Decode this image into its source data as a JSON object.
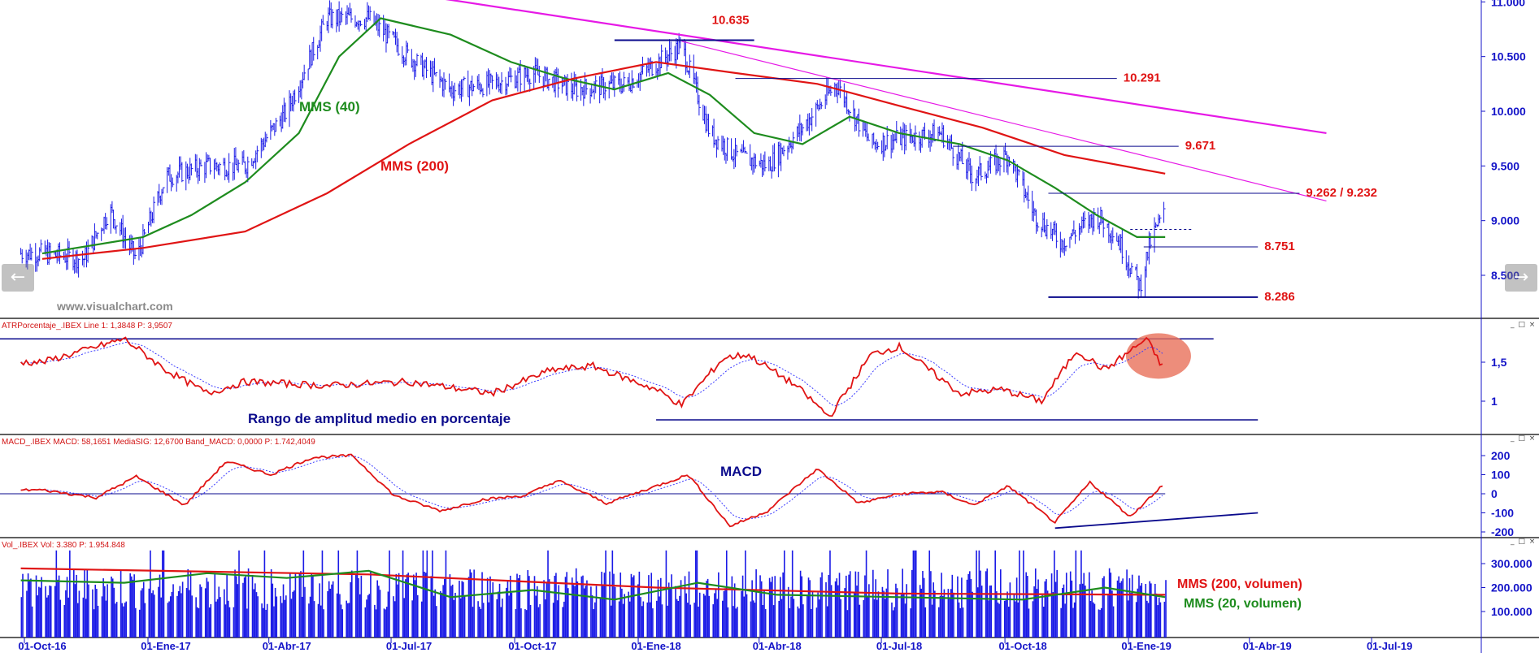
{
  "colors": {
    "background": "#ffffff",
    "axis_text": "#1414c8",
    "price_bars": "#1a1ae6",
    "mms40": "#1e8c1e",
    "mms200": "#e01414",
    "trendline": "#e619e6",
    "hline": "#0a0a8c",
    "annotation_red": "#e01414",
    "annotation_green": "#1e8c1e",
    "annotation_navy": "#0a0a8c",
    "panel_header": "#d21414",
    "divider": "#000000",
    "highlight_circle": "#e8705a"
  },
  "navigation": {
    "prev_icon": "arrow-left-icon",
    "next_icon": "arrow-right-icon",
    "prev_glyph": "←",
    "next_glyph": "→"
  },
  "watermark": "www.visualchart.com",
  "window_controls": "_ □ ×",
  "x_axis": {
    "ticks": [
      "01-Oct-16",
      "01-Ene-17",
      "01-Abr-17",
      "01-Jul-17",
      "01-Oct-17",
      "01-Ene-18",
      "01-Abr-18",
      "01-Jul-18",
      "01-Oct-18",
      "01-Ene-19",
      "01-Abr-19",
      "01-Jul-19"
    ]
  },
  "chart_data": [
    {
      "panel": "price",
      "type": "line",
      "y_axis_ticks": [
        "11.000",
        "10.500",
        "10.000",
        "9.500",
        "9.000",
        "8.500"
      ],
      "ylim": [
        8200,
        11000
      ],
      "price_bars": [
        {
          "date": "2016-10-01",
          "close": 8700
        },
        {
          "date": "2016-11-01",
          "close": 8650
        },
        {
          "date": "2016-11-20",
          "close": 9100
        },
        {
          "date": "2016-12-10",
          "close": 8650
        },
        {
          "date": "2017-01-01",
          "close": 9400
        },
        {
          "date": "2017-02-01",
          "close": 9500
        },
        {
          "date": "2017-03-01",
          "close": 9500
        },
        {
          "date": "2017-04-01",
          "close": 10000
        },
        {
          "date": "2017-05-01",
          "close": 10850
        },
        {
          "date": "2017-06-01",
          "close": 10850
        },
        {
          "date": "2017-07-01",
          "close": 10500
        },
        {
          "date": "2017-08-01",
          "close": 10200
        },
        {
          "date": "2017-09-01",
          "close": 10250
        },
        {
          "date": "2017-10-01",
          "close": 10350
        },
        {
          "date": "2017-11-01",
          "close": 10200
        },
        {
          "date": "2017-12-10",
          "close": 10250
        },
        {
          "date": "2018-01-20",
          "close": 10600
        },
        {
          "date": "2018-02-10",
          "close": 9800
        },
        {
          "date": "2018-03-01",
          "close": 9600
        },
        {
          "date": "2018-03-25",
          "close": 9500
        },
        {
          "date": "2018-04-20",
          "close": 9850
        },
        {
          "date": "2018-05-15",
          "close": 10250
        },
        {
          "date": "2018-06-10",
          "close": 9700
        },
        {
          "date": "2018-07-01",
          "close": 9750
        },
        {
          "date": "2018-08-01",
          "close": 9800
        },
        {
          "date": "2018-08-25",
          "close": 9400
        },
        {
          "date": "2018-09-20",
          "close": 9600
        },
        {
          "date": "2018-10-10",
          "close": 9050
        },
        {
          "date": "2018-10-30",
          "close": 8800
        },
        {
          "date": "2018-11-25",
          "close": 9050
        },
        {
          "date": "2018-12-10",
          "close": 8850
        },
        {
          "date": "2018-12-27",
          "close": 8400
        },
        {
          "date": "2019-01-05",
          "close": 8850
        },
        {
          "date": "2019-01-14",
          "close": 9050
        }
      ],
      "series": [
        {
          "name": "MMS (40)",
          "points": [
            {
              "date": "2016-10-01",
              "y": 8700
            },
            {
              "date": "2016-12-15",
              "y": 8850
            },
            {
              "date": "2017-01-20",
              "y": 9050
            },
            {
              "date": "2017-03-01",
              "y": 9350
            },
            {
              "date": "2017-04-10",
              "y": 9800
            },
            {
              "date": "2017-05-10",
              "y": 10500
            },
            {
              "date": "2017-06-10",
              "y": 10850
            },
            {
              "date": "2017-08-01",
              "y": 10700
            },
            {
              "date": "2017-09-15",
              "y": 10450
            },
            {
              "date": "2017-10-25",
              "y": 10300
            },
            {
              "date": "2017-12-01",
              "y": 10200
            },
            {
              "date": "2018-01-10",
              "y": 10350
            },
            {
              "date": "2018-02-10",
              "y": 10150
            },
            {
              "date": "2018-03-15",
              "y": 9800
            },
            {
              "date": "2018-04-20",
              "y": 9700
            },
            {
              "date": "2018-05-25",
              "y": 9950
            },
            {
              "date": "2018-07-01",
              "y": 9800
            },
            {
              "date": "2018-08-15",
              "y": 9700
            },
            {
              "date": "2018-09-20",
              "y": 9550
            },
            {
              "date": "2018-10-25",
              "y": 9300
            },
            {
              "date": "2018-11-25",
              "y": 9050
            },
            {
              "date": "2018-12-25",
              "y": 8850
            },
            {
              "date": "2019-01-15",
              "y": 8850
            }
          ]
        },
        {
          "name": "MMS (200)",
          "points": [
            {
              "date": "2016-10-01",
              "y": 8650
            },
            {
              "date": "2016-12-15",
              "y": 8750
            },
            {
              "date": "2017-03-01",
              "y": 8900
            },
            {
              "date": "2017-05-01",
              "y": 9250
            },
            {
              "date": "2017-07-01",
              "y": 9700
            },
            {
              "date": "2017-09-01",
              "y": 10100
            },
            {
              "date": "2017-11-01",
              "y": 10300
            },
            {
              "date": "2018-01-01",
              "y": 10450
            },
            {
              "date": "2018-03-01",
              "y": 10350
            },
            {
              "date": "2018-05-01",
              "y": 10250
            },
            {
              "date": "2018-07-01",
              "y": 10050
            },
            {
              "date": "2018-09-01",
              "y": 9850
            },
            {
              "date": "2018-11-01",
              "y": 9600
            },
            {
              "date": "2019-01-15",
              "y": 9430
            }
          ]
        }
      ],
      "trendlines": [
        {
          "from": {
            "date": "2017-07-15",
            "y": 11050
          },
          "to": {
            "date": "2019-05-15",
            "y": 9800
          }
        },
        {
          "from": {
            "date": "2018-01-20",
            "y": 10640
          },
          "to": {
            "date": "2019-05-15",
            "y": 9180
          }
        }
      ],
      "levels": [
        {
          "label": "10.635",
          "y": 10650,
          "from": "2017-12-01",
          "to": "2018-03-15"
        },
        {
          "label": "10.291",
          "y": 10300,
          "from": "2018-03-01",
          "to": "2018-12-10"
        },
        {
          "label": "9.671",
          "y": 9680,
          "from": "2018-08-10",
          "to": "2019-01-25"
        },
        {
          "label": "9.262 / 9.232",
          "y": 9250,
          "from": "2018-10-20",
          "to": "2019-04-25"
        },
        {
          "label": "8.751",
          "y": 8760,
          "from": "2018-12-30",
          "to": "2019-03-25"
        },
        {
          "label": "8.286",
          "y": 8300,
          "from": "2018-10-20",
          "to": "2019-03-25"
        }
      ],
      "annotations": [
        "MMS (40)",
        "MMS (200)"
      ]
    },
    {
      "panel": "atr",
      "type": "line",
      "header": "ATRPorcentaje_.IBEX  Line 1: 1,3848  P: 3,9507",
      "label": "Rango de amplitud medio en porcentaje",
      "y_axis_ticks": [
        "1,5",
        "1"
      ],
      "ylim": [
        0.7,
        2.0
      ],
      "series": [
        {
          "name": "ATR %",
          "points": [
            {
              "date": "2016-10-01",
              "y": 1.5
            },
            {
              "date": "2016-11-01",
              "y": 1.65
            },
            {
              "date": "2016-12-01",
              "y": 1.8
            },
            {
              "date": "2017-01-01",
              "y": 1.4
            },
            {
              "date": "2017-02-01",
              "y": 1.1
            },
            {
              "date": "2017-03-01",
              "y": 1.25
            },
            {
              "date": "2017-05-01",
              "y": 1.2
            },
            {
              "date": "2017-07-01",
              "y": 1.25
            },
            {
              "date": "2017-09-01",
              "y": 1.1
            },
            {
              "date": "2017-10-15",
              "y": 1.4
            },
            {
              "date": "2017-11-15",
              "y": 1.45
            },
            {
              "date": "2018-01-01",
              "y": 1.15
            },
            {
              "date": "2018-01-20",
              "y": 0.95
            },
            {
              "date": "2018-02-20",
              "y": 1.55
            },
            {
              "date": "2018-03-10",
              "y": 1.6
            },
            {
              "date": "2018-04-15",
              "y": 1.2
            },
            {
              "date": "2018-05-10",
              "y": 0.8
            },
            {
              "date": "2018-06-10",
              "y": 1.6
            },
            {
              "date": "2018-07-01",
              "y": 1.7
            },
            {
              "date": "2018-08-15",
              "y": 1.1
            },
            {
              "date": "2018-09-15",
              "y": 1.15
            },
            {
              "date": "2018-10-15",
              "y": 1.0
            },
            {
              "date": "2018-11-10",
              "y": 1.65
            },
            {
              "date": "2018-12-01",
              "y": 1.4
            },
            {
              "date": "2019-01-01",
              "y": 1.8
            },
            {
              "date": "2019-01-15",
              "y": 1.38
            }
          ]
        }
      ]
    },
    {
      "panel": "macd",
      "type": "line",
      "header": "MACD_.IBEX  MACD: 58,1651  MediaSIG: 12,6700  Band_MACD: 0,0000  P: 1.742,4049",
      "label": "MACD",
      "y_axis_ticks": [
        "200",
        "100",
        "0",
        "-100",
        "-200"
      ],
      "ylim": [
        -220,
        220
      ],
      "series": [
        {
          "name": "MACD",
          "points": [
            {
              "date": "2016-10-01",
              "y": 20
            },
            {
              "date": "2016-11-10",
              "y": -20
            },
            {
              "date": "2016-12-10",
              "y": 90
            },
            {
              "date": "2017-01-15",
              "y": -60
            },
            {
              "date": "2017-02-15",
              "y": 170
            },
            {
              "date": "2017-03-20",
              "y": 100
            },
            {
              "date": "2017-04-20",
              "y": 190
            },
            {
              "date": "2017-05-20",
              "y": 200
            },
            {
              "date": "2017-06-20",
              "y": -10
            },
            {
              "date": "2017-07-25",
              "y": -90
            },
            {
              "date": "2017-08-25",
              "y": -30
            },
            {
              "date": "2017-09-25",
              "y": -10
            },
            {
              "date": "2017-10-20",
              "y": 70
            },
            {
              "date": "2017-11-25",
              "y": -50
            },
            {
              "date": "2018-01-01",
              "y": 40
            },
            {
              "date": "2018-01-25",
              "y": 100
            },
            {
              "date": "2018-02-25",
              "y": -170
            },
            {
              "date": "2018-03-25",
              "y": -90
            },
            {
              "date": "2018-05-01",
              "y": 130
            },
            {
              "date": "2018-06-01",
              "y": -50
            },
            {
              "date": "2018-07-01",
              "y": 0
            },
            {
              "date": "2018-08-01",
              "y": 10
            },
            {
              "date": "2018-08-25",
              "y": -60
            },
            {
              "date": "2018-09-20",
              "y": 40
            },
            {
              "date": "2018-10-25",
              "y": -150
            },
            {
              "date": "2018-11-20",
              "y": 60
            },
            {
              "date": "2018-12-20",
              "y": -120
            },
            {
              "date": "2019-01-15",
              "y": 60
            }
          ]
        }
      ]
    },
    {
      "panel": "volume",
      "type": "bar",
      "header": "Vol_.IBEX  Vol: 3.380  P: 1.954.848",
      "y_axis_ticks": [
        "300.000",
        "200.000",
        "100.000"
      ],
      "ylim": [
        0,
        360000
      ],
      "bar_range": {
        "from": "2016-09-15",
        "to": "2019-01-15",
        "avg": 210000
      },
      "series": [
        {
          "name": "MMS (200, volumen)",
          "points": [
            {
              "date": "2016-09-15",
              "y": 280000
            },
            {
              "date": "2017-06-01",
              "y": 255000
            },
            {
              "date": "2018-01-01",
              "y": 200000
            },
            {
              "date": "2018-07-01",
              "y": 175000
            },
            {
              "date": "2019-01-15",
              "y": 170000
            }
          ]
        },
        {
          "name": "MMS (20, volumen)",
          "points": [
            {
              "date": "2016-09-15",
              "y": 230000
            },
            {
              "date": "2016-12-01",
              "y": 220000
            },
            {
              "date": "2017-02-01",
              "y": 260000
            },
            {
              "date": "2017-04-01",
              "y": 240000
            },
            {
              "date": "2017-06-01",
              "y": 270000
            },
            {
              "date": "2017-08-01",
              "y": 160000
            },
            {
              "date": "2017-10-01",
              "y": 190000
            },
            {
              "date": "2017-12-01",
              "y": 150000
            },
            {
              "date": "2018-02-01",
              "y": 220000
            },
            {
              "date": "2018-04-01",
              "y": 170000
            },
            {
              "date": "2018-07-01",
              "y": 160000
            },
            {
              "date": "2018-10-01",
              "y": 150000
            },
            {
              "date": "2018-12-01",
              "y": 200000
            },
            {
              "date": "2019-01-15",
              "y": 160000
            }
          ]
        }
      ],
      "annotations": [
        "MMS (200, volumen)",
        "MMS (20, volumen)"
      ]
    }
  ]
}
